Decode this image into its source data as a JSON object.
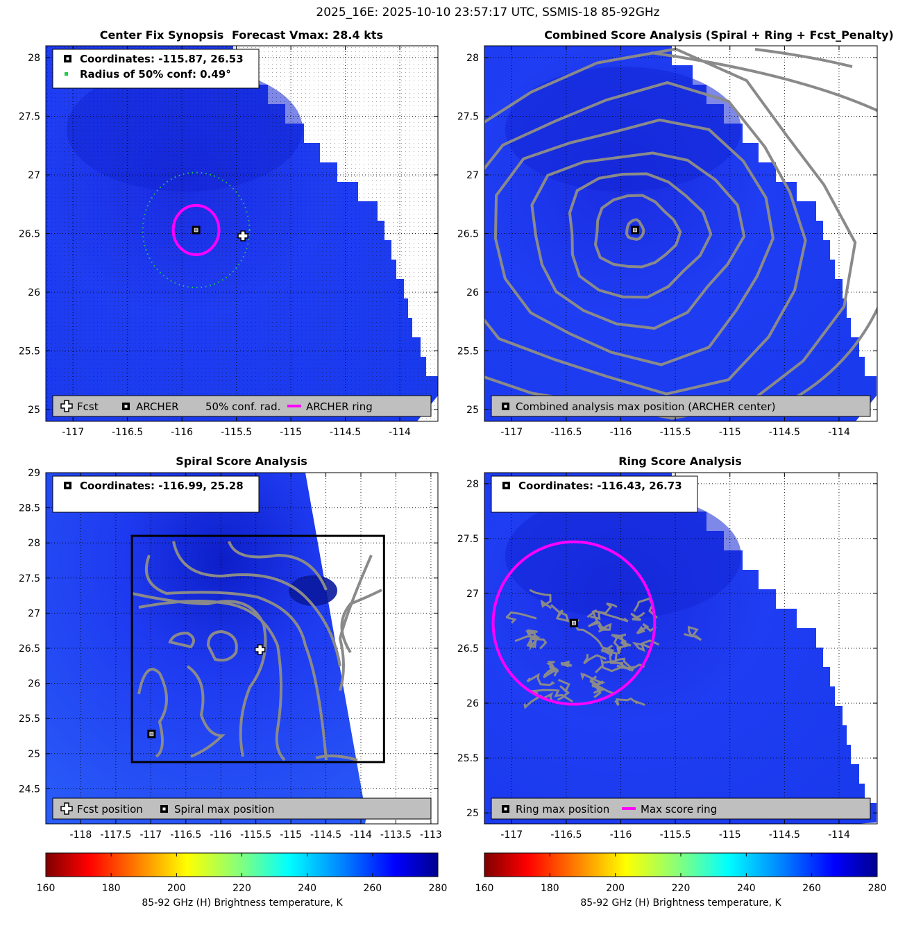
{
  "figure": {
    "suptitle": "2025_16E: 2025-10-10 23:57:17 UTC, SSMIS-18 85-92GHz"
  },
  "colors": {
    "ring": "#ff00ff",
    "conf": "#22cc44",
    "contour": "#8a8a8a",
    "legend_bg": "#bfbfbf",
    "swath_base": "#1f3cf5"
  },
  "panels": [
    {
      "id": "synopsis",
      "title_left": "Center Fix Synopsis",
      "title_right": "Forecast Vmax: 28.4 kts",
      "xlim": [
        -117.25,
        -113.65
      ],
      "ylim": [
        24.9,
        28.1
      ],
      "xticks": [
        -117,
        -116.5,
        -116,
        -115.5,
        -115,
        -114.5,
        -114
      ],
      "xtick_labels": [
        "-117",
        "-116.5",
        "-116",
        "-115.5",
        "-115",
        "-114.5",
        "-114"
      ],
      "yticks": [
        25,
        25.5,
        26,
        26.5,
        27,
        27.5,
        28
      ],
      "ytick_labels": [
        "25",
        "25.5",
        "26",
        "26.5",
        "27",
        "27.5",
        "28"
      ],
      "info": [
        "Coordinates: -115.87, 26.53",
        "Radius of 50% conf: 0.49°"
      ],
      "info_icons": [
        "archer-square",
        "green-dot"
      ],
      "legend": [
        {
          "icon": "fcst-cross",
          "label": "Fcst"
        },
        {
          "icon": "archer-square",
          "label": "ARCHER"
        },
        {
          "icon": "conf-dots",
          "label": "50% conf. rad."
        },
        {
          "icon": "ring-line",
          "label": "ARCHER ring"
        }
      ],
      "markers": {
        "archer": [
          -115.87,
          26.53
        ],
        "fcst": [
          -115.44,
          26.48
        ],
        "ring": {
          "center": [
            -115.87,
            26.53
          ],
          "radius_deg": 0.21
        },
        "conf": {
          "center": [
            -115.87,
            26.53
          ],
          "radius_deg": 0.49
        }
      }
    },
    {
      "id": "combined",
      "title": "Combined Score Analysis (Spiral + Ring + Fcst_Penalty)",
      "xlim": [
        -117.25,
        -113.65
      ],
      "ylim": [
        24.9,
        28.1
      ],
      "xticks": [
        -117,
        -116.5,
        -116,
        -115.5,
        -115,
        -114.5,
        -114
      ],
      "xtick_labels": [
        "-117",
        "-116.5",
        "-116",
        "-115.5",
        "-115",
        "-114.5",
        "-114"
      ],
      "yticks": [
        25,
        25.5,
        26,
        26.5,
        27,
        27.5,
        28
      ],
      "ytick_labels": [
        "25",
        "25.5",
        "26",
        "26.5",
        "27",
        "27.5",
        "28"
      ],
      "legend": [
        {
          "icon": "archer-square",
          "label": "Combined analysis max position (ARCHER center)"
        }
      ],
      "markers": {
        "archer": [
          -115.87,
          26.53
        ]
      }
    },
    {
      "id": "spiral",
      "title": "Spiral Score Analysis",
      "xlim": [
        -118.5,
        -112.9
      ],
      "ylim": [
        24.0,
        29.0
      ],
      "xticks": [
        -118,
        -117.5,
        -117,
        -116.5,
        -116,
        -115.5,
        -115,
        -114.5,
        -114,
        -113.5,
        -113
      ],
      "xtick_labels": [
        "-118",
        "-117.5",
        "-117",
        "-116.5",
        "-116",
        "-115.5",
        "-115",
        "-114.5",
        "-114",
        "-113.5",
        "-113"
      ],
      "yticks": [
        24.5,
        25,
        25.5,
        26,
        26.5,
        27,
        27.5,
        28,
        28.5,
        29
      ],
      "ytick_labels": [
        "24.5",
        "25",
        "25.5",
        "26",
        "26.5",
        "27",
        "27.5",
        "28",
        "28.5",
        "29"
      ],
      "info": [
        "Coordinates: -116.99, 25.28"
      ],
      "info_icons": [
        "archer-square"
      ],
      "legend": [
        {
          "icon": "fcst-cross",
          "label": "Fcst position"
        },
        {
          "icon": "archer-square",
          "label": "Spiral max position"
        }
      ],
      "markers": {
        "spiral_max": [
          -116.99,
          25.28
        ],
        "fcst": [
          -115.44,
          26.48
        ],
        "box": {
          "xmin": -117.27,
          "xmax": -113.67,
          "ymin": 24.88,
          "ymax": 28.1
        }
      }
    },
    {
      "id": "ring",
      "title": "Ring Score Analysis",
      "xlim": [
        -117.25,
        -113.65
      ],
      "ylim": [
        24.9,
        28.1
      ],
      "xticks": [
        -117,
        -116.5,
        -116,
        -115.5,
        -115,
        -114.5,
        -114
      ],
      "xtick_labels": [
        "-117",
        "-116.5",
        "-116",
        "-115.5",
        "-115",
        "-114.5",
        "-114"
      ],
      "yticks": [
        25,
        25.5,
        26,
        26.5,
        27,
        27.5,
        28
      ],
      "ytick_labels": [
        "25",
        "25.5",
        "26",
        "26.5",
        "27",
        "27.5",
        "28"
      ],
      "info": [
        "Coordinates: -116.43, 26.73"
      ],
      "info_icons": [
        "archer-square"
      ],
      "legend": [
        {
          "icon": "archer-square",
          "label": "Ring max position"
        },
        {
          "icon": "ring-line",
          "label": "Max score ring"
        }
      ],
      "markers": {
        "ring_max": [
          -116.43,
          26.73
        ],
        "ring": {
          "center": [
            -116.43,
            26.73
          ],
          "radius_deg": 0.74
        }
      }
    }
  ],
  "colorbars": [
    {
      "label": "85-92 GHz (H) Brightness temperature, K",
      "ticks": [
        160,
        180,
        200,
        220,
        240,
        260,
        280
      ],
      "tick_labels": [
        "160",
        "180",
        "200",
        "220",
        "240",
        "260",
        "280"
      ],
      "range": [
        160,
        280
      ]
    },
    {
      "label": "85-92 GHz (H) Brightness temperature, K",
      "ticks": [
        160,
        180,
        200,
        220,
        240,
        260,
        280
      ],
      "tick_labels": [
        "160",
        "180",
        "200",
        "220",
        "240",
        "260",
        "280"
      ],
      "range": [
        160,
        280
      ]
    }
  ],
  "chart_data": [
    {
      "type": "heatmap",
      "title": "Center Fix Synopsis",
      "subtitle": "Forecast Vmax: 28.4 kts",
      "xlim": [
        -117.25,
        -113.65
      ],
      "ylim": [
        24.9,
        28.1
      ],
      "value_range_K": [
        160,
        280
      ],
      "points": [
        {
          "name": "ARCHER",
          "x": -115.87,
          "y": 26.53
        },
        {
          "name": "Fcst",
          "x": -115.44,
          "y": 26.48
        }
      ],
      "ring_radius_deg": 0.21,
      "conf_radius_deg": 0.49
    },
    {
      "type": "heatmap",
      "title": "Combined Score Analysis (Spiral + Ring + Fcst_Penalty)",
      "xlim": [
        -117.25,
        -113.65
      ],
      "ylim": [
        24.9,
        28.1
      ],
      "points": [
        {
          "name": "Combined analysis max position (ARCHER center)",
          "x": -115.87,
          "y": 26.53
        }
      ]
    },
    {
      "type": "heatmap",
      "title": "Spiral Score Analysis",
      "xlim": [
        -118.5,
        -112.9
      ],
      "ylim": [
        24.0,
        29.0
      ],
      "points": [
        {
          "name": "Spiral max position",
          "x": -116.99,
          "y": 25.28
        },
        {
          "name": "Fcst position",
          "x": -115.44,
          "y": 26.48
        }
      ]
    },
    {
      "type": "heatmap",
      "title": "Ring Score Analysis",
      "xlim": [
        -117.25,
        -113.65
      ],
      "ylim": [
        24.9,
        28.1
      ],
      "points": [
        {
          "name": "Ring max position",
          "x": -116.43,
          "y": 26.73
        }
      ],
      "ring_radius_deg": 0.74
    }
  ]
}
